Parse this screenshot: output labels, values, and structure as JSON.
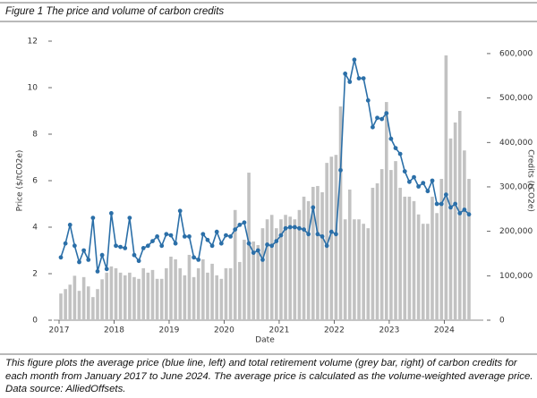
{
  "chart_data": {
    "type": "bar-line",
    "title": "Figure 1 The price and volume of carbon credits",
    "x_label": "Date",
    "y_label": "Price ($/tCO2e)",
    "y2_label": "Credits (tCO2e)",
    "caption": "This figure plots the average price (blue line, left) and total retirement volume (grey bar, right) of carbon credits for each month from January 2017 to June 2024. The average price is calculated as the volume-weighted average price. Data source: AlliedOffsets.",
    "x": [
      "2017-01",
      "2017-02",
      "2017-03",
      "2017-04",
      "2017-05",
      "2017-06",
      "2017-07",
      "2017-08",
      "2017-09",
      "2017-10",
      "2017-11",
      "2017-12",
      "2018-01",
      "2018-02",
      "2018-03",
      "2018-04",
      "2018-05",
      "2018-06",
      "2018-07",
      "2018-08",
      "2018-09",
      "2018-10",
      "2018-11",
      "2018-12",
      "2019-01",
      "2019-02",
      "2019-03",
      "2019-04",
      "2019-05",
      "2019-06",
      "2019-07",
      "2019-08",
      "2019-09",
      "2019-10",
      "2019-11",
      "2019-12",
      "2020-01",
      "2020-02",
      "2020-03",
      "2020-04",
      "2020-05",
      "2020-06",
      "2020-07",
      "2020-08",
      "2020-09",
      "2020-10",
      "2020-11",
      "2020-12",
      "2021-01",
      "2021-02",
      "2021-03",
      "2021-04",
      "2021-05",
      "2021-06",
      "2021-07",
      "2021-08",
      "2021-09",
      "2021-10",
      "2021-11",
      "2021-12",
      "2022-01",
      "2022-02",
      "2022-03",
      "2022-04",
      "2022-05",
      "2022-06",
      "2022-07",
      "2022-08",
      "2022-09",
      "2022-10",
      "2022-11",
      "2022-12",
      "2023-01",
      "2023-02",
      "2023-03",
      "2023-04",
      "2023-05",
      "2023-06",
      "2023-07",
      "2023-08",
      "2023-09",
      "2023-10",
      "2023-11",
      "2023-12",
      "2024-01",
      "2024-02",
      "2024-03",
      "2024-04",
      "2024-05",
      "2024-06"
    ],
    "series": [
      {
        "type": "bar",
        "axis": "y2",
        "color": "#c2c2c2",
        "values": [
          60000,
          70000,
          80000,
          100000,
          66000,
          97000,
          76000,
          52000,
          70000,
          92000,
          107000,
          121000,
          117000,
          107000,
          101000,
          107000,
          97000,
          93000,
          117000,
          107000,
          113000,
          93000,
          93000,
          117000,
          143000,
          137000,
          117000,
          101000,
          147000,
          97000,
          117000,
          137000,
          107000,
          127000,
          101000,
          93000,
          117000,
          117000,
          248000,
          131000,
          181000,
          332000,
          177000,
          169000,
          207000,
          227000,
          237000,
          207000,
          227000,
          237000,
          233000,
          227000,
          248000,
          278000,
          268000,
          300000,
          302000,
          288000,
          354000,
          368000,
          372000,
          481000,
          227000,
          294000,
          227000,
          227000,
          217000,
          207000,
          298000,
          308000,
          340000,
          491000,
          338000,
          358000,
          298000,
          278000,
          278000,
          268000,
          238000,
          217000,
          217000,
          278000,
          241000,
          318000,
          596000,
          409000,
          445000,
          471000,
          382000,
          318000
        ]
      },
      {
        "type": "line",
        "axis": "y",
        "color": "#2b6fa8",
        "values": [
          2.7,
          3.3,
          4.1,
          3.2,
          2.5,
          3.0,
          2.6,
          4.4,
          2.1,
          2.8,
          2.2,
          4.6,
          3.2,
          3.15,
          3.1,
          4.4,
          2.8,
          2.55,
          3.1,
          3.2,
          3.4,
          3.6,
          3.2,
          3.7,
          3.65,
          3.3,
          4.7,
          3.6,
          3.6,
          2.7,
          2.6,
          3.7,
          3.45,
          3.2,
          3.8,
          3.3,
          3.65,
          3.6,
          3.9,
          4.1,
          4.2,
          3.3,
          2.9,
          3.0,
          2.6,
          3.25,
          3.2,
          3.4,
          3.65,
          3.95,
          4.0,
          4.0,
          3.95,
          3.9,
          3.7,
          4.85,
          3.7,
          3.6,
          3.2,
          3.8,
          3.7,
          6.45,
          10.6,
          10.25,
          11.2,
          10.4,
          10.4,
          9.45,
          8.3,
          8.7,
          8.65,
          8.9,
          7.8,
          7.4,
          7.15,
          6.4,
          5.95,
          6.15,
          5.75,
          5.9,
          5.55,
          6.0,
          5.0,
          5.0,
          5.4,
          4.85,
          5.0,
          4.6,
          4.75,
          4.55
        ]
      }
    ],
    "ylim": [
      0,
      12
    ],
    "yticks": [
      0,
      2,
      4,
      6,
      8,
      10,
      12
    ],
    "y2lim": [
      0,
      628000
    ],
    "y2ticks": [
      0,
      {
        "value": 100000,
        "label": "100,000"
      },
      {
        "value": 200000,
        "label": "200,000"
      },
      {
        "value": 300000,
        "label": "300,000"
      },
      {
        "value": 400000,
        "label": "400,000"
      },
      {
        "value": 500000,
        "label": "500,000"
      },
      {
        "value": 600000,
        "label": "600,000"
      }
    ],
    "xticks": [
      {
        "value": "2017-01",
        "label": "2017"
      },
      {
        "value": "2018-01",
        "label": "2018"
      },
      {
        "value": "2019-01",
        "label": "2019"
      },
      {
        "value": "2020-01",
        "label": "2020"
      },
      {
        "value": "2021-01",
        "label": "2021"
      },
      {
        "value": "2022-01",
        "label": "2022"
      },
      {
        "value": "2023-01",
        "label": "2023"
      },
      {
        "value": "2024-01",
        "label": "2024"
      }
    ],
    "grid": false
  }
}
